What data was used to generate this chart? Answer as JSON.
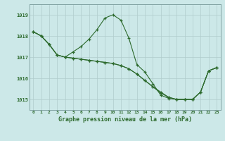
{
  "background_color": "#cce8e8",
  "grid_color": "#b0cccc",
  "line_color": "#2d6a2d",
  "xlabel": "Graphe pression niveau de la mer (hPa)",
  "xlim": [
    -0.5,
    23.5
  ],
  "ylim": [
    1014.5,
    1019.5
  ],
  "yticks": [
    1015,
    1016,
    1017,
    1018,
    1019
  ],
  "xticks": [
    0,
    1,
    2,
    3,
    4,
    5,
    6,
    7,
    8,
    9,
    10,
    11,
    12,
    13,
    14,
    15,
    16,
    17,
    18,
    19,
    20,
    21,
    22,
    23
  ],
  "line1": {
    "x": [
      0,
      1,
      2,
      3,
      4,
      5,
      6,
      7,
      8,
      9,
      10,
      11,
      12,
      13,
      14,
      15,
      16,
      17,
      18,
      19,
      20,
      21,
      22,
      23
    ],
    "y": [
      1018.2,
      1018.0,
      1017.6,
      1017.1,
      1017.0,
      1017.25,
      1017.5,
      1017.85,
      1018.3,
      1018.85,
      1019.0,
      1018.75,
      1017.9,
      1016.65,
      1016.3,
      1015.75,
      1015.2,
      1015.05,
      1015.0,
      1015.0,
      1015.0,
      1015.35,
      1016.35,
      1016.5
    ]
  },
  "line2": {
    "x": [
      0,
      1,
      2,
      3,
      4,
      5,
      6,
      7,
      8,
      9,
      10,
      11,
      12,
      13,
      14,
      15,
      16,
      17,
      18,
      19,
      20,
      21,
      22,
      23
    ],
    "y": [
      1018.2,
      1018.0,
      1017.6,
      1017.1,
      1017.0,
      1016.95,
      1016.9,
      1016.85,
      1016.8,
      1016.75,
      1016.7,
      1016.6,
      1016.45,
      1016.2,
      1015.9,
      1015.6,
      1015.3,
      1015.1,
      1015.0,
      1015.0,
      1015.0,
      1015.35,
      1016.35,
      1016.5
    ]
  },
  "line3": {
    "x": [
      0,
      1,
      2,
      3,
      4,
      5,
      6,
      7,
      8,
      9,
      10,
      11,
      12,
      13,
      14,
      15,
      16,
      17,
      18,
      19,
      20,
      21,
      22,
      23
    ],
    "y": [
      1018.2,
      1018.0,
      1017.6,
      1017.1,
      1017.0,
      1016.95,
      1016.9,
      1016.85,
      1016.8,
      1016.75,
      1016.7,
      1016.6,
      1016.45,
      1016.2,
      1015.9,
      1015.6,
      1015.35,
      1015.1,
      1015.0,
      1015.0,
      1015.0,
      1015.35,
      1016.35,
      1016.5
    ]
  }
}
